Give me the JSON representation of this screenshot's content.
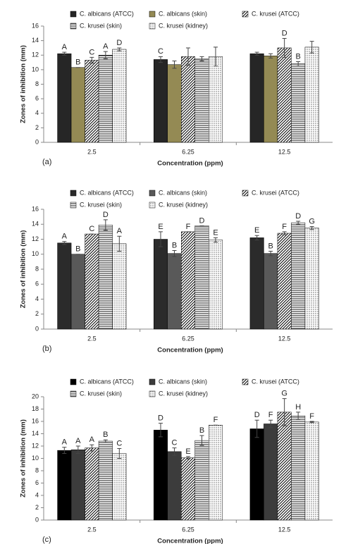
{
  "chart_data": [
    {
      "type": "bar",
      "panel": "(a)",
      "xlabel": "Concentration (ppm)",
      "ylabel": "Zones of inhibition (mm)",
      "categories": [
        "2.5",
        "6.25",
        "12.5"
      ],
      "ylim": [
        0,
        16
      ],
      "yticks": [
        0,
        2,
        4,
        6,
        8,
        10,
        12,
        14,
        16
      ],
      "series": [
        {
          "name": "C. albicans (ATCC)",
          "color": "#262626",
          "pattern": "solid",
          "values": [
            12.2,
            11.4,
            12.2
          ],
          "errors": [
            0.2,
            0.4,
            0.2
          ],
          "labels": [
            "A",
            "C",
            null
          ]
        },
        {
          "name": "C. albicans (skin)",
          "color": "#948a54",
          "pattern": "solid",
          "values": [
            10.3,
            10.7,
            11.9
          ],
          "errors": [
            0,
            0.5,
            0.3
          ],
          "labels": [
            "B",
            null,
            null
          ]
        },
        {
          "name": "C. krusei (ATCC)",
          "color": "#000000",
          "pattern": "diag",
          "values": [
            11.3,
            11.8,
            13.0
          ],
          "errors": [
            0.4,
            1.2,
            1.3
          ],
          "labels": [
            "C",
            null,
            "D"
          ]
        },
        {
          "name": "C. krusei (skin)",
          "color": "#000000",
          "pattern": "hstripe",
          "values": [
            12.0,
            11.5,
            10.8
          ],
          "errors": [
            0.5,
            0.3,
            0.3
          ],
          "labels": [
            "A",
            null,
            "B"
          ]
        },
        {
          "name": "C. krusei (kidney)",
          "color": "#000000",
          "pattern": "dots",
          "values": [
            12.8,
            11.8,
            13.1
          ],
          "errors": [
            0.2,
            1.3,
            0.8
          ],
          "labels": [
            "D",
            null,
            null
          ]
        }
      ]
    },
    {
      "type": "bar",
      "panel": "(b)",
      "xlabel": "Concentration (ppm)",
      "ylabel": "Zones of inhibition (mm)",
      "categories": [
        "2.5",
        "6.25",
        "12.5"
      ],
      "ylim": [
        0,
        16
      ],
      "yticks": [
        0,
        2,
        4,
        6,
        8,
        10,
        12,
        14,
        16
      ],
      "series": [
        {
          "name": "C. albicans (ATCC)",
          "color": "#2b2b2b",
          "pattern": "solid",
          "values": [
            11.5,
            12.0,
            12.2
          ],
          "errors": [
            0.2,
            1.0,
            0.3
          ],
          "labels": [
            "A",
            "E",
            "E"
          ]
        },
        {
          "name": "C. albicans (skin)",
          "color": "#595959",
          "pattern": "solid",
          "values": [
            10.0,
            10.1,
            10.1
          ],
          "errors": [
            0,
            0.4,
            0.3
          ],
          "labels": [
            "B",
            "B",
            "B"
          ]
        },
        {
          "name": "C. krusei (ATCC)",
          "color": "#000000",
          "pattern": "diag",
          "values": [
            12.7,
            13.0,
            12.8
          ],
          "errors": [
            0,
            0,
            0.2
          ],
          "labels": [
            "C",
            "F",
            "F"
          ]
        },
        {
          "name": "C. krusei (skin)",
          "color": "#000000",
          "pattern": "hstripe",
          "values": [
            13.9,
            13.8,
            14.2
          ],
          "errors": [
            0.7,
            0,
            0.2
          ],
          "labels": [
            "D",
            "D",
            "D"
          ]
        },
        {
          "name": "C. krusei (kidney)",
          "color": "#000000",
          "pattern": "dots",
          "values": [
            11.4,
            11.9,
            13.5
          ],
          "errors": [
            1.0,
            0.3,
            0.2
          ],
          "labels": [
            "A",
            "E",
            "G"
          ]
        }
      ]
    },
    {
      "type": "bar",
      "panel": "(c)",
      "xlabel": "Concentration (ppm)",
      "ylabel": "Zones of inhibition (mm)",
      "categories": [
        "2.5",
        "6.25",
        "12.5"
      ],
      "ylim": [
        0,
        20
      ],
      "yticks": [
        0,
        2,
        4,
        6,
        8,
        10,
        12,
        14,
        16,
        18,
        20
      ],
      "series": [
        {
          "name": "C. albicans (ATCC)",
          "color": "#000000",
          "pattern": "solid",
          "values": [
            11.3,
            14.6,
            14.8
          ],
          "errors": [
            0.5,
            1.1,
            1.4
          ],
          "labels": [
            "A",
            "D",
            "D"
          ]
        },
        {
          "name": "C. albicans (skin)",
          "color": "#3c3c3c",
          "pattern": "solid",
          "values": [
            11.4,
            11.1,
            15.6
          ],
          "errors": [
            0.6,
            0.6,
            0.6
          ],
          "labels": [
            "A",
            "C",
            "F"
          ]
        },
        {
          "name": "C. krusei (ATCC)",
          "color": "#000000",
          "pattern": "diag",
          "values": [
            11.7,
            10.1,
            17.5
          ],
          "errors": [
            0.5,
            0.2,
            2.2
          ],
          "labels": [
            "A",
            "E",
            "G"
          ]
        },
        {
          "name": "C. krusei (skin)",
          "color": "#000000",
          "pattern": "hstripe",
          "values": [
            12.8,
            12.9,
            16.9
          ],
          "errors": [
            0.2,
            0.8,
            0.6
          ],
          "labels": [
            "B",
            "B",
            "H"
          ]
        },
        {
          "name": "C. krusei (kidney)",
          "color": "#000000",
          "pattern": "dots",
          "values": [
            10.8,
            15.4,
            15.9
          ],
          "errors": [
            0.8,
            0,
            0.1
          ],
          "labels": [
            "C",
            "F",
            "F"
          ]
        }
      ]
    }
  ]
}
